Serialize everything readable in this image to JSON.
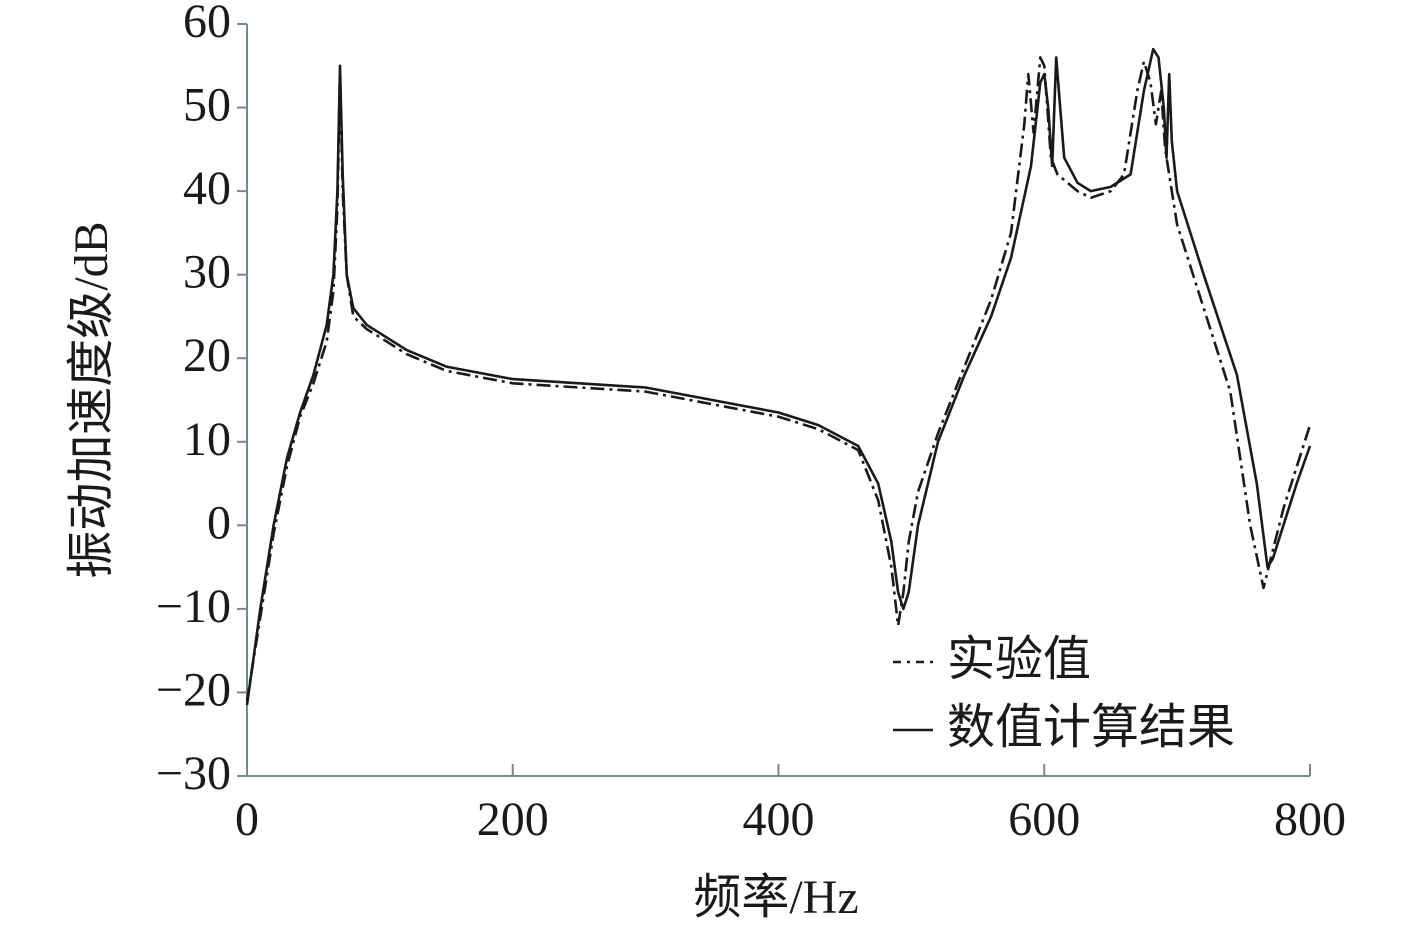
{
  "chart_data": {
    "type": "line",
    "xlabel": "频率/Hz",
    "ylabel": "振动加速度级/dB",
    "xlim": [
      0,
      800
    ],
    "xticks": [
      0,
      200,
      400,
      600,
      800
    ],
    "ylim": [
      -30,
      60
    ],
    "yticks": [
      {
        "value": -30,
        "label": "−30"
      },
      {
        "value": -20,
        "label": "−20"
      },
      {
        "value": -10,
        "label": "−10"
      },
      0,
      10,
      20,
      30,
      40,
      50,
      60
    ],
    "legend": "lower right",
    "series": [
      {
        "name": "实验值",
        "color": "#1a1a1a",
        "dash": "dashdot",
        "x": [
          0,
          10,
          20,
          30,
          40,
          50,
          60,
          65,
          68,
          70,
          72,
          75,
          80,
          90,
          100,
          120,
          150,
          200,
          250,
          300,
          350,
          400,
          430,
          460,
          475,
          485,
          490,
          494,
          498,
          505,
          520,
          540,
          560,
          575,
          585,
          588,
          592,
          597,
          600,
          605,
          610,
          625,
          635,
          650,
          660,
          670,
          675,
          680,
          684,
          688,
          691,
          700,
          720,
          740,
          755,
          765,
          772,
          780,
          790,
          800
        ],
        "values": [
          -21,
          -11,
          -1,
          7,
          13,
          17,
          22,
          28,
          38,
          54,
          40,
          30,
          25,
          23.5,
          22.5,
          20.5,
          18.5,
          17,
          16.5,
          16,
          14.5,
          13,
          11.5,
          9,
          3,
          -5,
          -12,
          -8,
          -2,
          4,
          11,
          19,
          27,
          35,
          48,
          54,
          47,
          56,
          55,
          44,
          42,
          40,
          39.2,
          40,
          42,
          52,
          55.5,
          53,
          48,
          52,
          45,
          36,
          26,
          16,
          0,
          -7.5,
          -3,
          2,
          7,
          12
        ]
      },
      {
        "name": "数值计算结果",
        "color": "#1a1a1a",
        "dash": "solid",
        "x": [
          0,
          10,
          20,
          30,
          40,
          50,
          60,
          65,
          68,
          70,
          72,
          75,
          80,
          90,
          100,
          120,
          150,
          200,
          250,
          300,
          350,
          400,
          430,
          460,
          475,
          485,
          490,
          494,
          498,
          505,
          520,
          540,
          560,
          575,
          590,
          597,
          600,
          603,
          606,
          609,
          612,
          615,
          625,
          635,
          650,
          665,
          675,
          682,
          686,
          690,
          692,
          694,
          696,
          700,
          720,
          745,
          760,
          768,
          772,
          780,
          790,
          800
        ],
        "values": [
          -21.5,
          -10,
          0,
          8,
          13.5,
          18,
          24,
          30,
          40,
          55,
          42,
          30,
          26,
          24,
          23,
          21,
          19,
          17.5,
          17,
          16.5,
          15,
          13.5,
          12,
          9.5,
          5,
          -2,
          -8,
          -10,
          -8,
          0,
          10,
          18,
          25,
          32,
          43,
          53,
          54,
          50,
          43,
          56,
          50,
          44,
          41,
          40,
          40.5,
          42,
          52,
          57,
          56,
          50,
          44,
          54,
          46,
          40,
          30,
          18,
          5,
          -5,
          -4,
          0,
          5,
          9.5
        ]
      }
    ]
  }
}
